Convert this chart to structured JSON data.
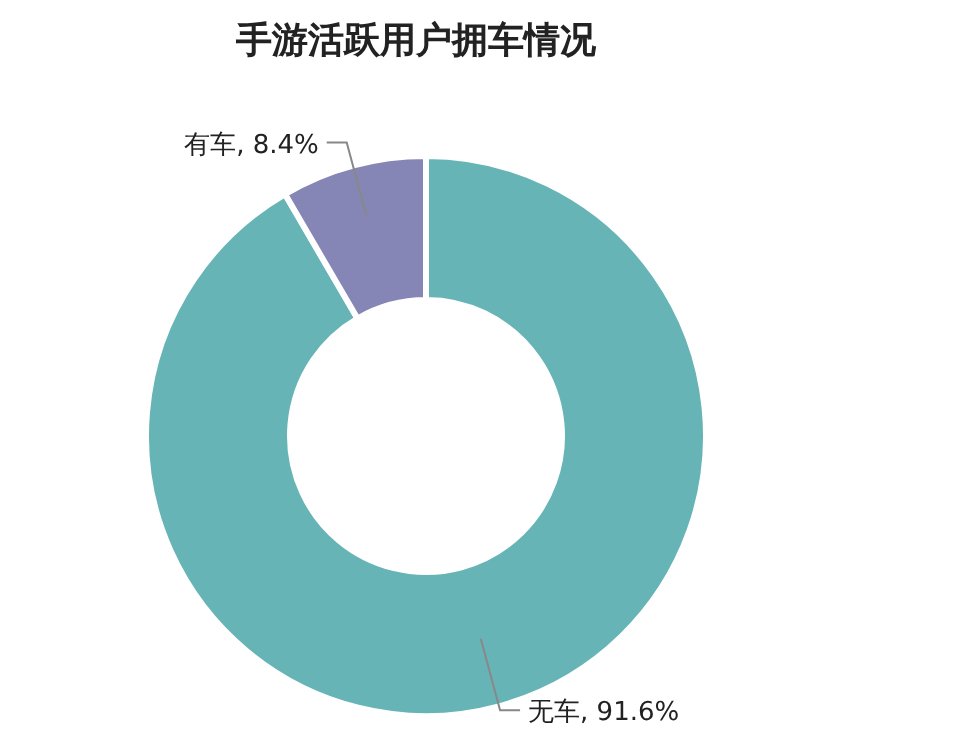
{
  "chart_data": {
    "type": "donut",
    "title": "手游活跃用户拥车情况",
    "categories": [
      "无车",
      "有车"
    ],
    "values": [
      91.6,
      8.4
    ],
    "value_labels": [
      "91.6%",
      "8.4%"
    ],
    "colors": [
      "#66b4b6",
      "#8686b6"
    ]
  }
}
